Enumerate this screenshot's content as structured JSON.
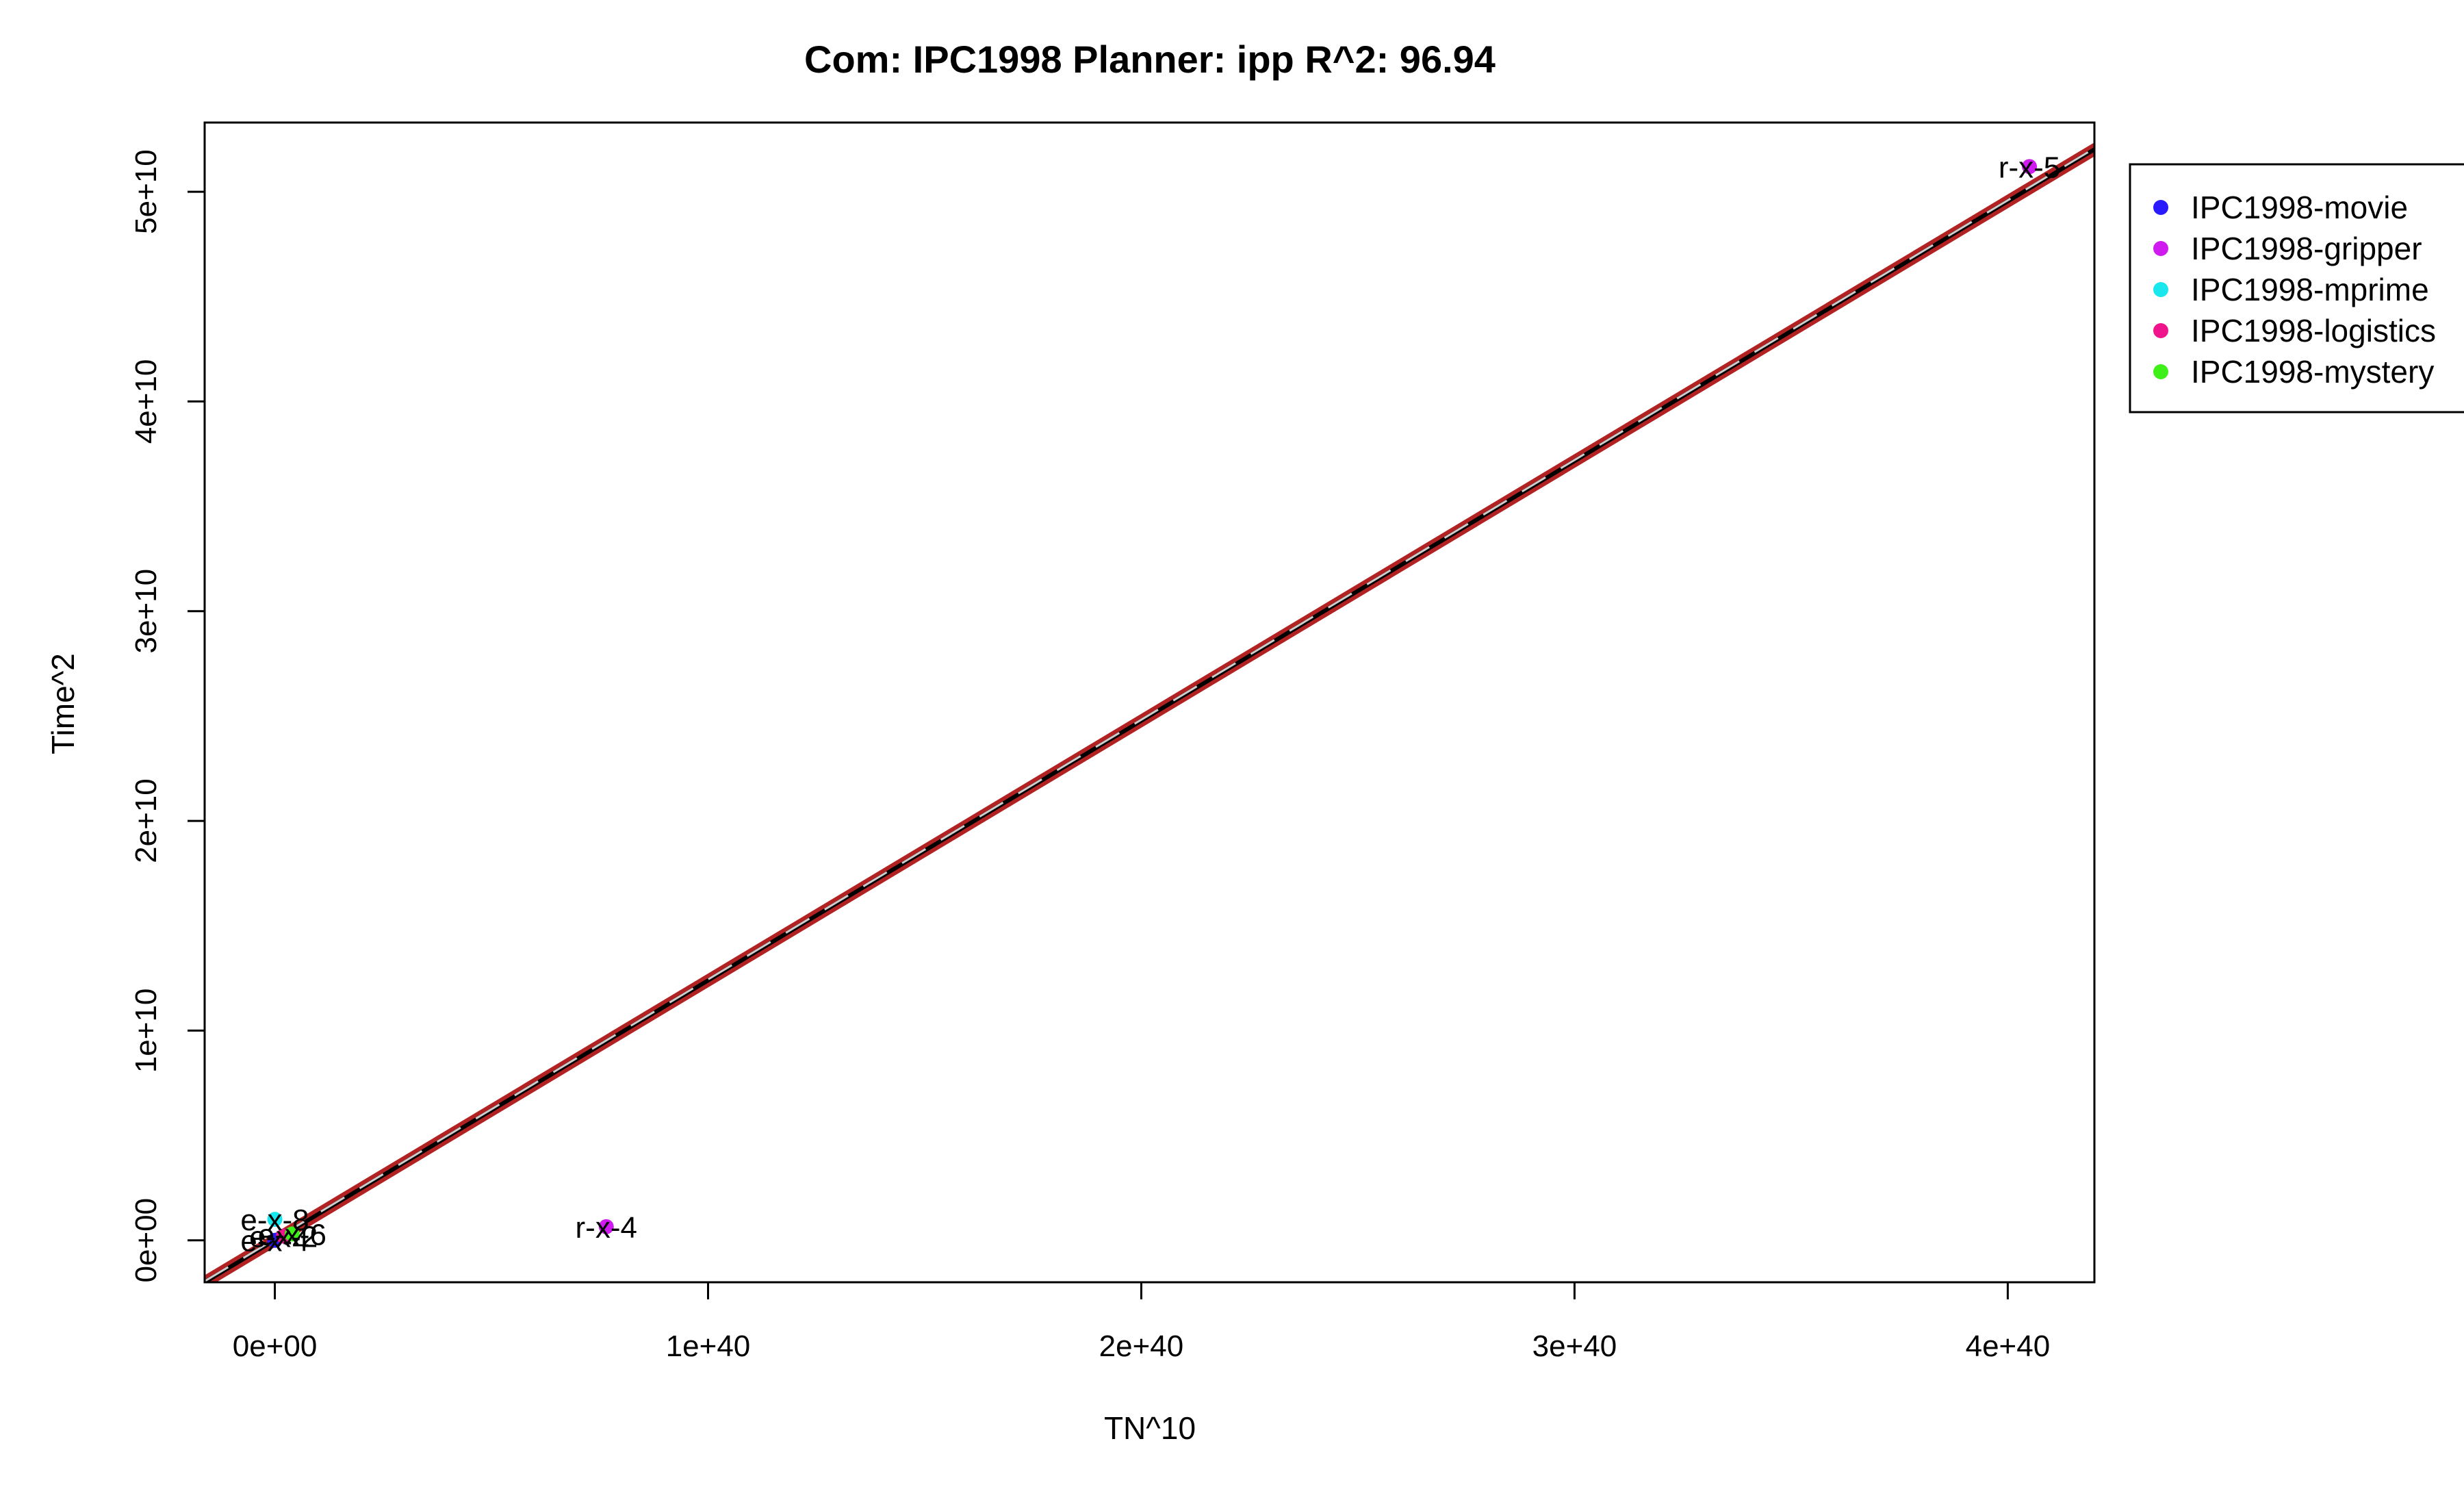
{
  "chart_data": {
    "type": "scatter",
    "title": "Com: IPC1998 Planner: ipp R^2: 96.94",
    "xlabel": "TN^10",
    "ylabel": "Time^2",
    "xlim": [
      -1.62e+39,
      4.2e+40
    ],
    "ylim": [
      -2000000000.0,
      53300000000.0
    ],
    "x_ticks": [
      0,
      1e+40,
      2e+40,
      3e+40,
      4e+40
    ],
    "x_tick_labels": [
      "0e+00",
      "1e+40",
      "2e+40",
      "3e+40",
      "4e+40"
    ],
    "y_ticks": [
      0,
      10000000000.0,
      20000000000.0,
      30000000000.0,
      40000000000.0,
      50000000000.0
    ],
    "y_tick_labels": [
      "0e+00",
      "1e+10",
      "2e+10",
      "3e+10",
      "4e+10",
      "5e+10"
    ],
    "grid": false,
    "legend_position": "right",
    "series": [
      {
        "name": "IPC1998-movie",
        "color": "#2a1bff",
        "points": [
          {
            "x": 0,
            "y": 0,
            "label": "e-x-4"
          }
        ]
      },
      {
        "name": "IPC1998-gripper",
        "color": "#d01bf0",
        "points": [
          {
            "x": 4.05e+40,
            "y": 51200000000.0,
            "label": "r-x-5"
          },
          {
            "x": 7.65e+39,
            "y": 650000000.0,
            "label": "r-x-4"
          }
        ]
      },
      {
        "name": "IPC1998-mprime",
        "color": "#18e8ee",
        "points": [
          {
            "x": 0,
            "y": 1000000000.0,
            "label": "e-x-8"
          }
        ]
      },
      {
        "name": "IPC1998-logistics",
        "color": "#f0148c",
        "points": [
          {
            "x": 2e+38,
            "y": 200000000.0,
            "label": "e-x-2"
          }
        ]
      },
      {
        "name": "IPC1998-mystery",
        "color": "#3ff018",
        "points": [
          {
            "x": 4e+38,
            "y": 300000000.0,
            "label": "e-x-6"
          }
        ]
      }
    ],
    "fit_lines": [
      {
        "color": "#b22222",
        "style": "solid",
        "x": [
          -1.62e+39,
          4.2e+40
        ],
        "y": [
          -1800000000.0,
          52220000000.0
        ]
      },
      {
        "color": "#b22222",
        "style": "solid",
        "x": [
          -1.62e+39,
          4.2e+40
        ],
        "y": [
          -2200000000.0,
          51820000000.0
        ]
      },
      {
        "color": "#000000",
        "style": "solid",
        "x": [
          -1.62e+39,
          4.2e+40
        ],
        "y": [
          -2000000000.0,
          52020000000.0
        ]
      },
      {
        "color": "#cccccc",
        "style": "dashed",
        "x": [
          -1.62e+39,
          4.2e+40
        ],
        "y": [
          -1950000000.0,
          52070000000.0
        ]
      }
    ]
  }
}
